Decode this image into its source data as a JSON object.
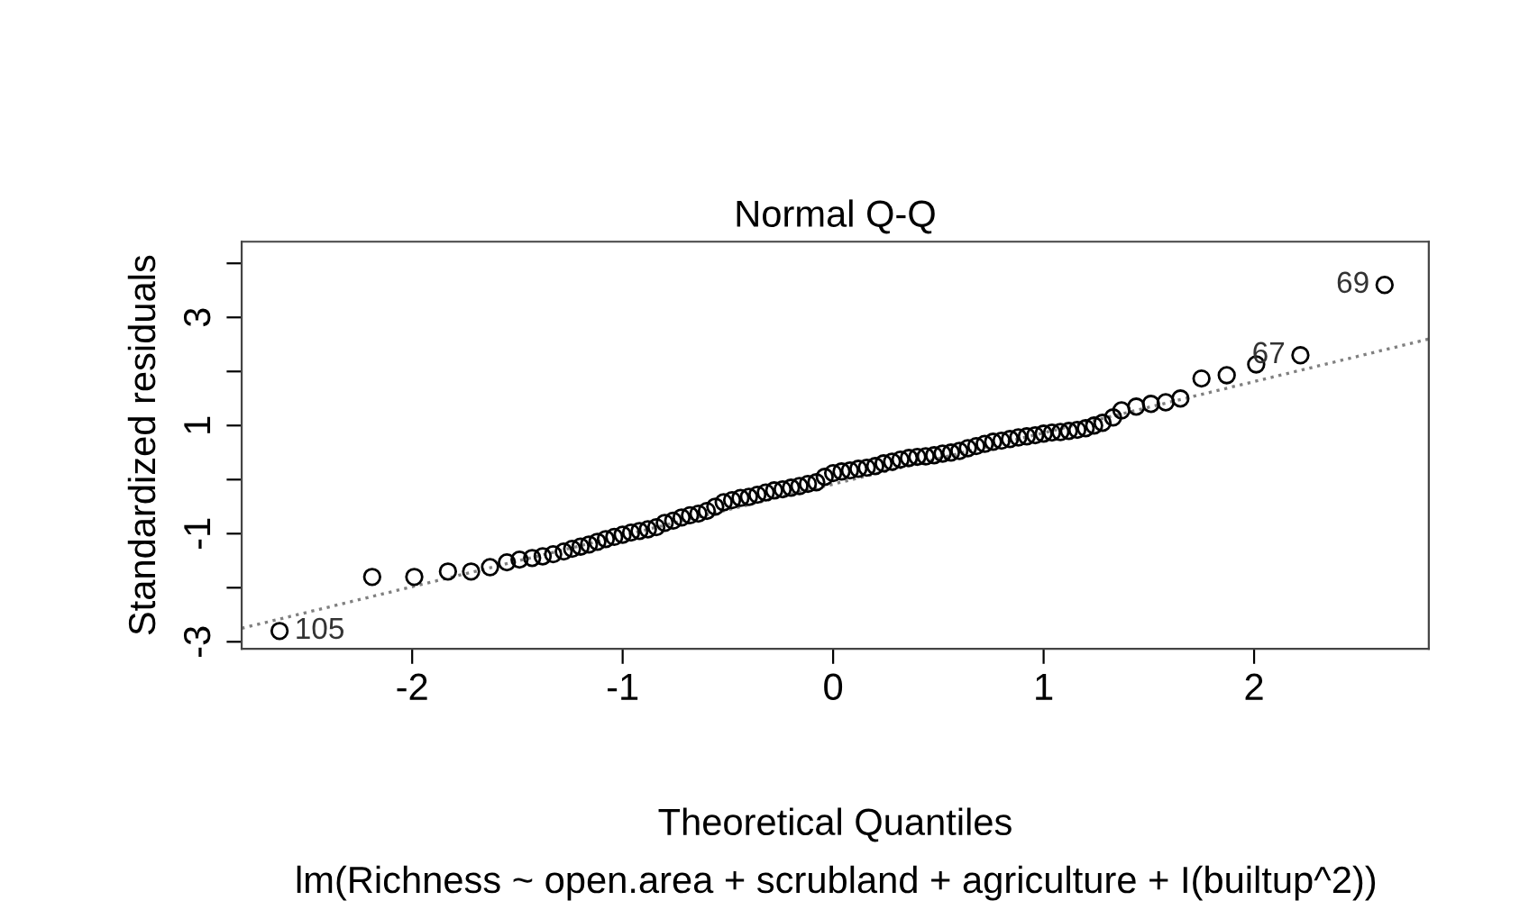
{
  "chart_data": {
    "type": "scatter",
    "title": "Normal Q-Q",
    "xlabel": "Theoretical Quantiles",
    "ylabel": "Standardized residuals",
    "xlim": [
      -2.81,
      2.83
    ],
    "ylim": [
      -3.13,
      4.4
    ],
    "xticks": [
      -2,
      -1,
      0,
      1,
      2
    ],
    "yticks": [
      -3,
      {
        "value": -2,
        "label": null
      },
      -1,
      {
        "value": 0,
        "label": null
      },
      1,
      {
        "value": 2,
        "label": null
      },
      3,
      {
        "value": 4,
        "label": null
      }
    ],
    "grid": false,
    "legend": false,
    "series": [
      {
        "color": "#000000",
        "marker": "circle",
        "x": [
          -2.63,
          -2.19,
          -1.99,
          -1.83,
          -1.72,
          -1.63,
          -1.55,
          -1.49,
          -1.43,
          -1.38,
          -1.33,
          -1.28,
          -1.24,
          -1.2,
          -1.16,
          -1.12,
          -1.08,
          -1.04,
          -1.0,
          -0.96,
          -0.92,
          -0.88,
          -0.84,
          -0.8,
          -0.76,
          -0.72,
          -0.68,
          -0.64,
          -0.6,
          -0.56,
          -0.52,
          -0.48,
          -0.44,
          -0.4,
          -0.36,
          -0.32,
          -0.28,
          -0.24,
          -0.2,
          -0.16,
          -0.12,
          -0.08,
          -0.04,
          0.0,
          0.04,
          0.08,
          0.12,
          0.16,
          0.2,
          0.24,
          0.28,
          0.32,
          0.36,
          0.4,
          0.44,
          0.48,
          0.52,
          0.56,
          0.6,
          0.64,
          0.68,
          0.72,
          0.76,
          0.8,
          0.84,
          0.88,
          0.92,
          0.96,
          1.0,
          1.04,
          1.08,
          1.12,
          1.16,
          1.2,
          1.24,
          1.28,
          1.33,
          1.37,
          1.44,
          1.51,
          1.58,
          1.65,
          1.75,
          1.87,
          2.01,
          2.22,
          2.62
        ],
        "values": [
          -2.8,
          -1.8,
          -1.8,
          -1.7,
          -1.7,
          -1.62,
          -1.53,
          -1.48,
          -1.45,
          -1.42,
          -1.38,
          -1.33,
          -1.28,
          -1.24,
          -1.2,
          -1.15,
          -1.1,
          -1.06,
          -1.02,
          -0.98,
          -0.95,
          -0.92,
          -0.88,
          -0.8,
          -0.76,
          -0.7,
          -0.66,
          -0.63,
          -0.58,
          -0.5,
          -0.42,
          -0.38,
          -0.34,
          -0.32,
          -0.28,
          -0.24,
          -0.2,
          -0.18,
          -0.15,
          -0.12,
          -0.08,
          -0.05,
          0.05,
          0.12,
          0.15,
          0.17,
          0.2,
          0.22,
          0.25,
          0.3,
          0.33,
          0.37,
          0.4,
          0.42,
          0.43,
          0.45,
          0.48,
          0.5,
          0.53,
          0.58,
          0.62,
          0.66,
          0.7,
          0.72,
          0.75,
          0.78,
          0.8,
          0.82,
          0.85,
          0.87,
          0.88,
          0.9,
          0.92,
          0.95,
          1.0,
          1.05,
          1.15,
          1.28,
          1.35,
          1.4,
          1.43,
          1.5,
          1.87,
          1.93,
          2.13,
          2.3,
          3.6
        ]
      },
      {
        "type": "line",
        "color": "#808080",
        "line_style": "dotted",
        "x": [
          -2.81,
          2.83
        ],
        "values": [
          -2.75,
          2.6
        ]
      }
    ],
    "annotations": [
      {
        "text": "105",
        "x": -2.63,
        "y": -2.8
      },
      {
        "text": "67",
        "x": 2.22,
        "y": 2.3
      },
      {
        "text": "69",
        "x": 2.62,
        "y": 3.6
      },
      "lm(Richness ~ open.area + scrubland + agriculture + I(builtup^2))"
    ]
  }
}
